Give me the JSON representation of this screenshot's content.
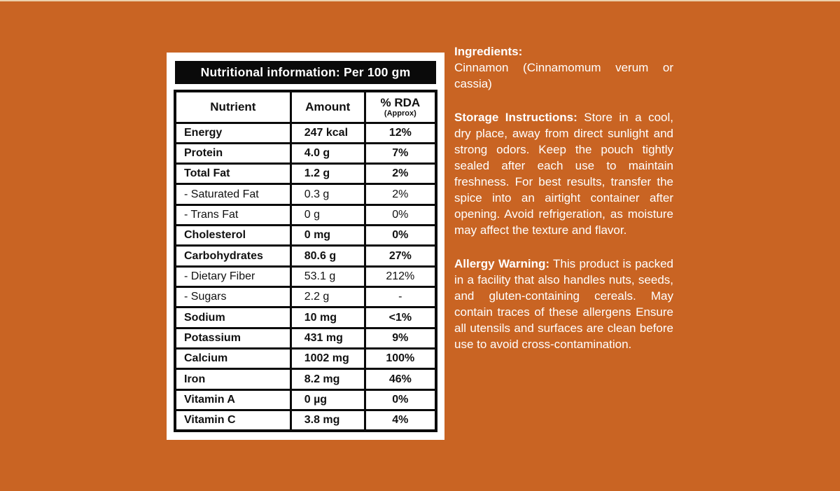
{
  "label": {
    "title": "Nutritional information: Per 100 gm",
    "table": {
      "headers": {
        "nutrient": "Nutrient",
        "amount": "Amount",
        "rda": "% RDA",
        "rda_sub": "(Approx)"
      },
      "rows": [
        {
          "nutrient": "Energy",
          "amount": "247 kcal",
          "rda": "12%",
          "bold": true
        },
        {
          "nutrient": "Protein",
          "amount": "4.0 g",
          "rda": "7%",
          "bold": true
        },
        {
          "nutrient": "Total Fat",
          "amount": "1.2 g",
          "rda": "2%",
          "bold": true
        },
        {
          "nutrient": "- Saturated Fat",
          "amount": "0.3 g",
          "rda": "2%",
          "bold": false
        },
        {
          "nutrient": "- Trans Fat",
          "amount": "0 g",
          "rda": "0%",
          "bold": false
        },
        {
          "nutrient": "Cholesterol",
          "amount": "0 mg",
          "rda": "0%",
          "bold": true
        },
        {
          "nutrient": "Carbohydrates",
          "amount": "80.6 g",
          "rda": "27%",
          "bold": true
        },
        {
          "nutrient": "- Dietary Fiber",
          "amount": "53.1 g",
          "rda": "212%",
          "bold": false
        },
        {
          "nutrient": "- Sugars",
          "amount": "2.2 g",
          "rda": "-",
          "bold": false
        },
        {
          "nutrient": "Sodium",
          "amount": "10 mg",
          "rda": "<1%",
          "bold": true
        },
        {
          "nutrient": "Potassium",
          "amount": "431 mg",
          "rda": "9%",
          "bold": true
        },
        {
          "nutrient": "Calcium",
          "amount": "1002 mg",
          "rda": "100%",
          "bold": true
        },
        {
          "nutrient": "Iron",
          "amount": "8.2 mg",
          "rda": "46%",
          "bold": true
        },
        {
          "nutrient": "Vitamin A",
          "amount": "0 µg",
          "rda": "0%",
          "bold": true
        },
        {
          "nutrient": "Vitamin C",
          "amount": "3.8 mg",
          "rda": "4%",
          "bold": true
        }
      ]
    }
  },
  "info": {
    "ingredients_heading": "Ingredients:",
    "ingredients_text": "Cinnamon (Cinnamomum verum or cassia)",
    "storage_heading": "Storage Instructions:",
    "storage_text": "Store in a cool, dry place, away from direct sunlight and strong odors. Keep the pouch tightly sealed after each use to maintain freshness. For best results, transfer the spice into an airtight container after opening. Avoid refrigeration, as moisture may affect the texture and flavor.",
    "allergy_heading": "Allergy Warning:",
    "allergy_text": "This product is packed in a facility that also handles nuts, seeds, and gluten-containing cereals. May contain traces of these allergens Ensure all utensils and surfaces are clean before use to avoid cross-contamination."
  },
  "colors": {
    "background": "#c96423",
    "top_strip": "#ecd0ac",
    "panel": "#ffffff",
    "table_border": "#0a0a0a",
    "title_bar_bg": "#0a0a0a",
    "title_text": "#ffffff",
    "body_text": "#ffffff",
    "text_dark": "#111111"
  }
}
